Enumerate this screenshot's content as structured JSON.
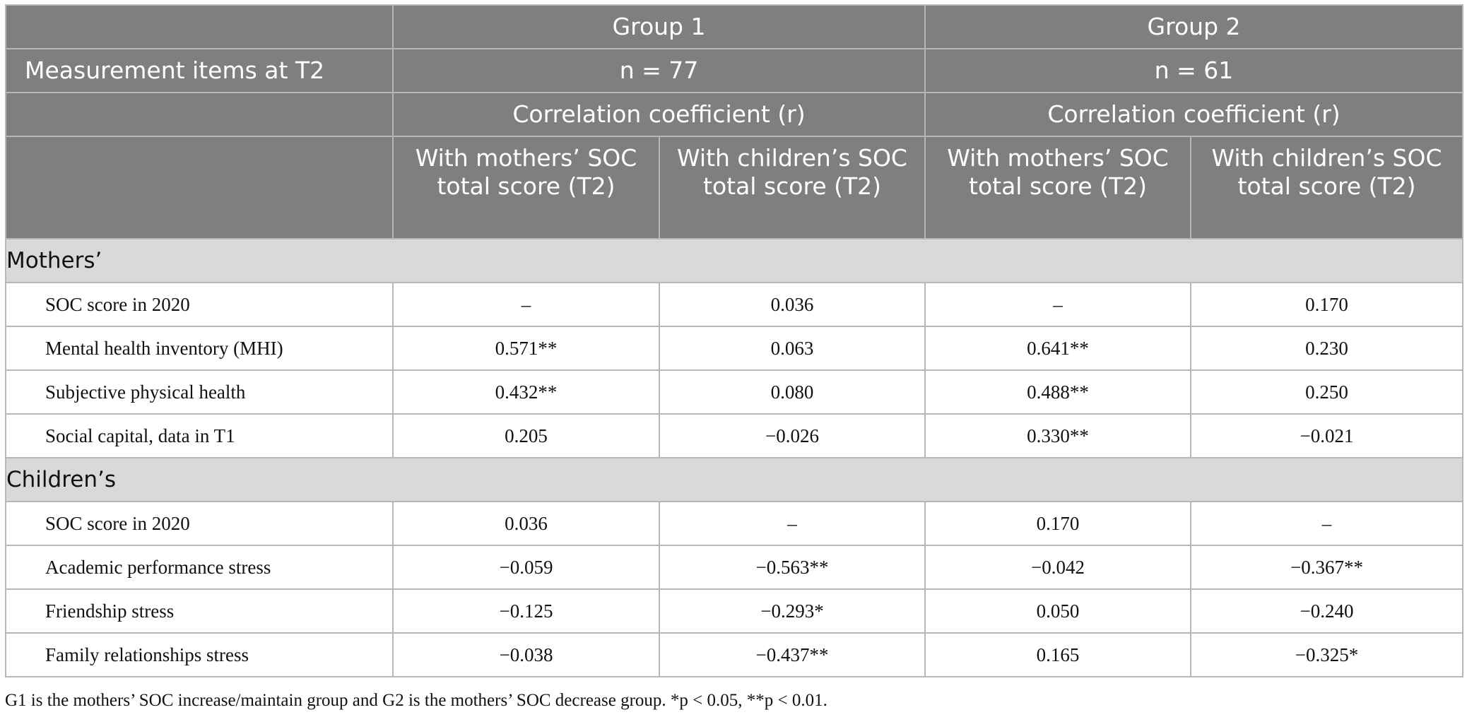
{
  "header": {
    "group1": "Group 1",
    "group2": "Group 2",
    "measurement_label": "Measurement items at T2",
    "n_group1": "n = 77",
    "n_group2": "n = 61",
    "corr_group1": "Correlation coefficient (r)",
    "corr_group2": "Correlation coefficient (r)",
    "columns": [
      "With mothers’ SOC total score (T2)",
      "With children’s SOC total score (T2)",
      "With mothers’ SOC total score (T2)",
      "With children’s SOC total score (T2)"
    ]
  },
  "sections": [
    {
      "title": "Mothers’",
      "rows": [
        {
          "label": "SOC score in 2020",
          "values": [
            "–",
            "0.036",
            "–",
            "0.170"
          ]
        },
        {
          "label": "Mental health inventory (MHI)",
          "values": [
            "0.571**",
            "0.063",
            "0.641**",
            "0.230"
          ]
        },
        {
          "label": "Subjective physical health",
          "values": [
            "0.432**",
            "0.080",
            "0.488**",
            "0.250"
          ]
        },
        {
          "label": "Social capital, data in T1",
          "values": [
            "0.205",
            "−0.026",
            "0.330**",
            "−0.021"
          ]
        }
      ]
    },
    {
      "title": "Children’s",
      "rows": [
        {
          "label": "SOC score in 2020",
          "values": [
            "0.036",
            "–",
            "0.170",
            "–"
          ]
        },
        {
          "label": "Academic performance stress",
          "values": [
            "−0.059",
            "−0.563**",
            "−0.042",
            "−0.367**"
          ]
        },
        {
          "label": "Friendship stress",
          "values": [
            "−0.125",
            "−0.293*",
            "0.050",
            "−0.240"
          ]
        },
        {
          "label": "Family relationships stress",
          "values": [
            "−0.038",
            "−0.437**",
            "0.165",
            "−0.325*"
          ]
        }
      ]
    }
  ],
  "footnote": "G1 is the mothers’ SOC increase/maintain group and G2 is the mothers’ SOC decrease group. *p < 0.05, **p < 0.01."
}
